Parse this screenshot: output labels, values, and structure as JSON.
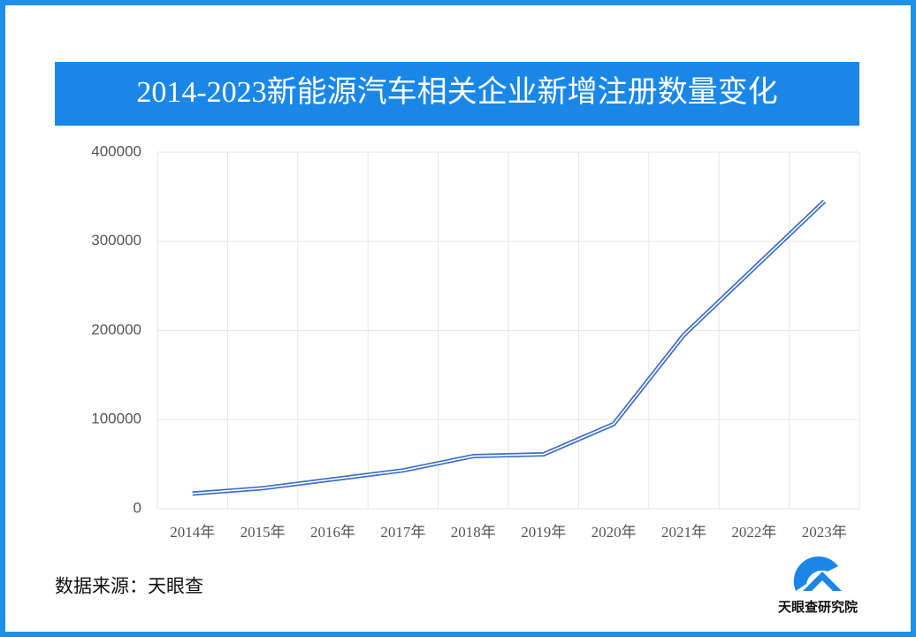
{
  "chart_data": {
    "type": "line",
    "title": "2014-2023新能源汽车相关企业新增注册数量变化",
    "categories": [
      "2014年",
      "2015年",
      "2016年",
      "2017年",
      "2018年",
      "2019年",
      "2020年",
      "2021年",
      "2022年",
      "2023年"
    ],
    "values": [
      17000,
      23000,
      33000,
      43000,
      59000,
      61000,
      95000,
      195000,
      270000,
      345000
    ],
    "color": "#3f6fc4",
    "ylim": [
      0,
      400000
    ],
    "yticks": [
      0,
      100000,
      200000,
      300000,
      400000
    ],
    "grid": true
  },
  "footer": {
    "source": "数据来源：天眼查",
    "logo": "天眼查研究院"
  }
}
